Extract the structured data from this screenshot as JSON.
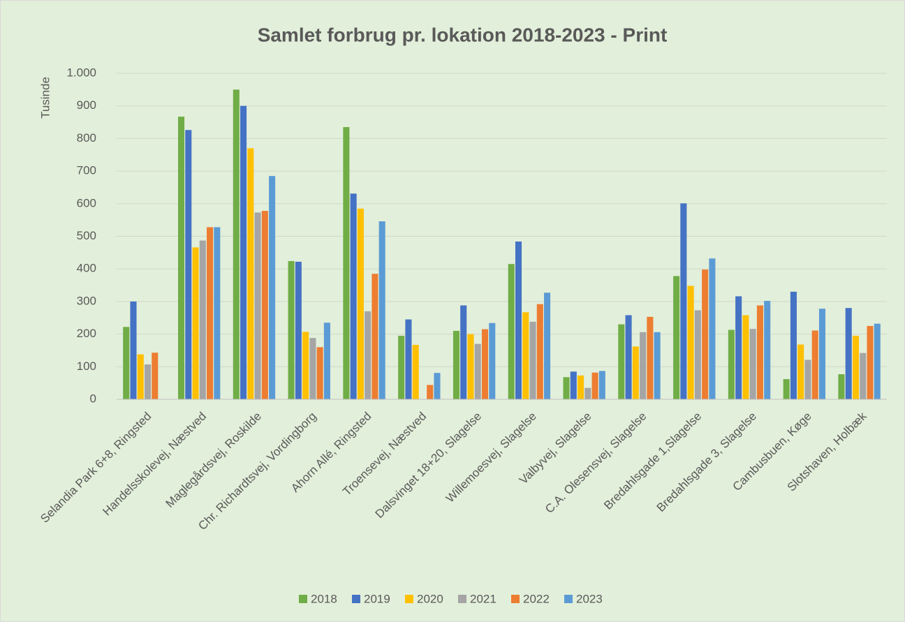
{
  "chart_data": {
    "type": "bar",
    "title": "Samlet forbrug pr. lokation 2018-2023 - Print",
    "y_label": "Tusinde",
    "categories": [
      "Selandia Park 6+8, Ringsted",
      "Handelsskolevej, Næstved",
      "Maglegårdsvej, Roskilde",
      "Chr. Richardtsvej, Vordingborg",
      "Ahorn Allé, Ringsted",
      "Troensevej, Næstved",
      "Dalsvinget 18+20, Slagelse",
      "Willemoesvej, Slagelse",
      "Valbyvej, Slagelse",
      "C.A. Olesensvej, Slagelse",
      "Bredahlsgade 1,Slagelse",
      "Bredahlsgade 3, Slagelse",
      "Cambusbuen, Køge",
      "Slotshaven, Holbæk"
    ],
    "series": [
      {
        "name": "2018",
        "color": "#70ad47",
        "values": [
          222,
          867,
          950,
          424,
          835,
          195,
          210,
          415,
          68,
          230,
          378,
          213,
          62,
          77
        ]
      },
      {
        "name": "2019",
        "color": "#4472c4",
        "values": [
          300,
          826,
          900,
          422,
          631,
          245,
          288,
          484,
          85,
          258,
          601,
          316,
          330,
          280
        ]
      },
      {
        "name": "2020",
        "color": "#ffc000",
        "values": [
          138,
          466,
          770,
          207,
          585,
          167,
          200,
          267,
          73,
          162,
          348,
          258,
          168,
          195
        ]
      },
      {
        "name": "2021",
        "color": "#a5a5a5",
        "values": [
          107,
          487,
          573,
          188,
          270,
          null,
          170,
          238,
          35,
          206,
          273,
          216,
          121,
          142
        ]
      },
      {
        "name": "2022",
        "color": "#ed7d31",
        "values": [
          143,
          528,
          578,
          160,
          385,
          44,
          215,
          292,
          82,
          253,
          398,
          288,
          211,
          225
        ]
      },
      {
        "name": "2023",
        "color": "#5b9bd5",
        "values": [
          null,
          528,
          685,
          235,
          546,
          81,
          234,
          327,
          87,
          206,
          432,
          302,
          278,
          232
        ]
      }
    ],
    "ylim": [
      0,
      1000
    ],
    "yticks": [
      0,
      100,
      200,
      300,
      400,
      500,
      600,
      700,
      800,
      900,
      {
        "value": 1000,
        "label": "1.000"
      }
    ],
    "grid": true,
    "legend": "bottom"
  }
}
